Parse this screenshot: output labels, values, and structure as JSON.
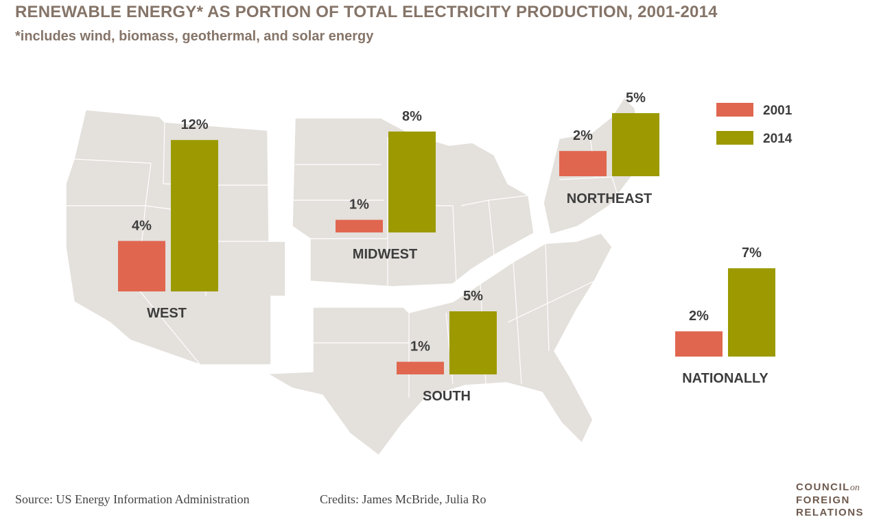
{
  "title": "RENEWABLE ENERGY* AS PORTION OF TOTAL ELECTRICITY PRODUCTION, 2001-2014",
  "subtitle": "*includes wind, biomass, geothermal, and solar energy",
  "source": "Source: US Energy Information Administration",
  "credits": "Credits: James McBride, Julia Ro",
  "logo": {
    "line1": "COUNCIL",
    "on": "on",
    "line2": "FOREIGN",
    "line3": "RELATIONS"
  },
  "colors": {
    "y2001": "#e0664f",
    "y2014": "#9c9a00",
    "map": "#e4e0dc",
    "text": "#3d3d3d",
    "title": "#857468"
  },
  "chart_data": {
    "type": "bar",
    "categories": [
      "WEST",
      "MIDWEST",
      "NORTHEAST",
      "SOUTH",
      "NATIONALLY"
    ],
    "series": [
      {
        "name": "2001",
        "values": [
          4,
          1,
          2,
          1,
          2
        ],
        "labels": [
          "4%",
          "1%",
          "2%",
          "1%",
          "2%"
        ]
      },
      {
        "name": "2014",
        "values": [
          12,
          8,
          5,
          5,
          7
        ],
        "labels": [
          "12%",
          "8%",
          "5%",
          "5%",
          "7%"
        ]
      }
    ],
    "unit": "%",
    "legend": "top-right",
    "title": "RENEWABLE ENERGY* AS PORTION OF TOTAL ELECTRICITY PRODUCTION, 2001-2014"
  }
}
